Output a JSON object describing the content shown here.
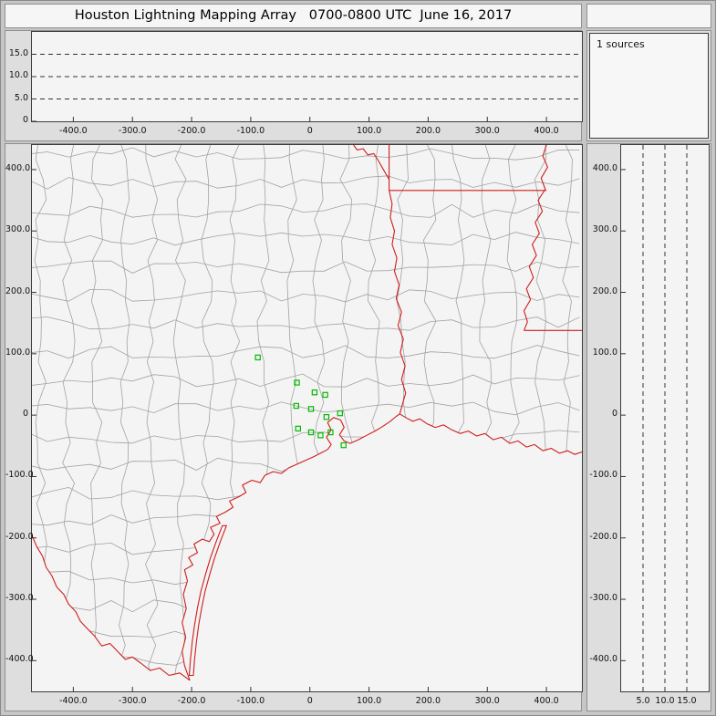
{
  "colors": {
    "window_bg": "#c6c6c6",
    "panel_bg": "#dedede",
    "plot_bg": "#f4f4f4",
    "panel_border": "#8f8f8f",
    "plot_border": "#3c3c3c",
    "text": "#111111",
    "county_line": "#a2a2a2",
    "state_line": "#cf1d1d",
    "station": "#00bb00",
    "dash_line": "#333333"
  },
  "chart_data": {
    "type": "scatter",
    "title": "Houston Lightning Mapping Array   0700-0800 UTC  June 16, 2017",
    "source_count_label": "1 sources",
    "grid": "dashed altitude reference lines at 5, 10 and 15 km",
    "legend_position": "none",
    "axes": {
      "ew": {
        "range": [
          -470,
          460
        ],
        "ticks": [
          [
            "-400.0",
            -400
          ],
          [
            "-300.0",
            -300
          ],
          [
            "-200.0",
            -200
          ],
          [
            "-100.0",
            -100
          ],
          [
            "0",
            0
          ],
          [
            "100.0",
            100
          ],
          [
            "200.0",
            200
          ],
          [
            "300.0",
            300
          ],
          [
            "400.0",
            400
          ]
        ]
      },
      "ns": {
        "range": [
          -450,
          440
        ],
        "ticks": [
          [
            "400.0",
            400
          ],
          [
            "300.0",
            300
          ],
          [
            "200.0",
            200
          ],
          [
            "100.0",
            100
          ],
          [
            "0",
            0
          ],
          [
            "-100.0",
            -100
          ],
          [
            "-200.0",
            -200
          ],
          [
            "-300.0",
            -300
          ],
          [
            "-400.0",
            -400
          ]
        ]
      },
      "alt_top": {
        "range": [
          0,
          20
        ],
        "dash_lines": [
          5,
          10,
          15
        ],
        "ticks": [
          [
            "15.0",
            15
          ],
          [
            "10.0",
            10
          ],
          [
            "5.0",
            5
          ],
          [
            "0",
            0
          ]
        ]
      },
      "alt_right": {
        "range": [
          0,
          20
        ],
        "dash_lines": [
          5,
          10,
          15
        ],
        "ticks": [
          [
            "5.0",
            5
          ],
          [
            "10.0",
            10
          ],
          [
            "15.0",
            15
          ]
        ]
      }
    },
    "stations_km": [
      [
        -88,
        94
      ],
      [
        -22,
        53
      ],
      [
        8,
        37
      ],
      [
        26,
        33
      ],
      [
        -23,
        15
      ],
      [
        2,
        10
      ],
      [
        28,
        -3
      ],
      [
        51,
        3
      ],
      [
        -20,
        -22
      ],
      [
        2,
        -28
      ],
      [
        18,
        -33
      ],
      [
        35,
        -28
      ],
      [
        57,
        -49
      ]
    ],
    "map": {
      "coastline": [
        [
          -203,
          -432
        ],
        [
          -212,
          -408
        ],
        [
          -216,
          -385
        ],
        [
          -210,
          -362
        ],
        [
          -216,
          -338
        ],
        [
          -209,
          -315
        ],
        [
          -214,
          -292
        ],
        [
          -207,
          -270
        ],
        [
          -212,
          -252
        ],
        [
          -198,
          -244
        ],
        [
          -205,
          -232
        ],
        [
          -190,
          -224
        ],
        [
          -196,
          -210
        ],
        [
          -182,
          -202
        ],
        [
          -170,
          -206
        ],
        [
          -162,
          -194
        ],
        [
          -168,
          -183
        ],
        [
          -152,
          -176
        ],
        [
          -158,
          -165
        ],
        [
          -143,
          -158
        ],
        [
          -130,
          -150
        ],
        [
          -136,
          -140
        ],
        [
          -120,
          -133
        ],
        [
          -108,
          -126
        ],
        [
          -114,
          -114
        ],
        [
          -98,
          -106
        ],
        [
          -84,
          -110
        ],
        [
          -76,
          -98
        ],
        [
          -62,
          -92
        ],
        [
          -48,
          -95
        ],
        [
          -36,
          -86
        ],
        [
          -22,
          -80
        ],
        [
          -8,
          -74
        ],
        [
          6,
          -68
        ],
        [
          18,
          -62
        ],
        [
          30,
          -56
        ],
        [
          36,
          -48
        ],
        [
          28,
          -36
        ],
        [
          36,
          -24
        ],
        [
          30,
          -12
        ],
        [
          40,
          -4
        ],
        [
          52,
          -8
        ],
        [
          58,
          -20
        ],
        [
          50,
          -32
        ],
        [
          58,
          -42
        ],
        [
          68,
          -46
        ],
        [
          82,
          -40
        ],
        [
          96,
          -33
        ],
        [
          110,
          -26
        ],
        [
          124,
          -18
        ],
        [
          136,
          -10
        ],
        [
          146,
          -2
        ],
        [
          152,
          2
        ],
        [
          162,
          -4
        ],
        [
          174,
          -10
        ],
        [
          186,
          -6
        ],
        [
          198,
          -14
        ],
        [
          212,
          -20
        ],
        [
          226,
          -16
        ],
        [
          240,
          -24
        ],
        [
          254,
          -30
        ],
        [
          268,
          -26
        ],
        [
          282,
          -34
        ],
        [
          296,
          -30
        ],
        [
          310,
          -40
        ],
        [
          324,
          -36
        ],
        [
          338,
          -46
        ],
        [
          352,
          -42
        ],
        [
          366,
          -52
        ],
        [
          380,
          -48
        ],
        [
          394,
          -58
        ],
        [
          408,
          -54
        ],
        [
          422,
          -62
        ],
        [
          436,
          -58
        ],
        [
          448,
          -64
        ],
        [
          460,
          -60
        ]
      ],
      "rio_grande": [
        [
          -203,
          -432
        ],
        [
          -220,
          -420
        ],
        [
          -238,
          -424
        ],
        [
          -254,
          -412
        ],
        [
          -270,
          -416
        ],
        [
          -286,
          -404
        ],
        [
          -300,
          -394
        ],
        [
          -312,
          -398
        ],
        [
          -326,
          -384
        ],
        [
          -338,
          -372
        ],
        [
          -352,
          -376
        ],
        [
          -364,
          -360
        ],
        [
          -376,
          -348
        ],
        [
          -388,
          -336
        ],
        [
          -396,
          -320
        ],
        [
          -408,
          -308
        ],
        [
          -416,
          -292
        ],
        [
          -428,
          -280
        ],
        [
          -436,
          -262
        ],
        [
          -446,
          -248
        ],
        [
          -452,
          -230
        ],
        [
          -462,
          -214
        ],
        [
          -470,
          -196
        ]
      ],
      "padre_island": [
        [
          -148,
          -180
        ],
        [
          -158,
          -205
        ],
        [
          -168,
          -232
        ],
        [
          -176,
          -258
        ],
        [
          -184,
          -286
        ],
        [
          -190,
          -314
        ],
        [
          -195,
          -342
        ],
        [
          -199,
          -370
        ],
        [
          -202,
          -398
        ],
        [
          -204,
          -424
        ],
        [
          -197,
          -424
        ],
        [
          -195,
          -398
        ],
        [
          -192,
          -370
        ],
        [
          -188,
          -342
        ],
        [
          -183,
          -314
        ],
        [
          -177,
          -286
        ],
        [
          -169,
          -258
        ],
        [
          -161,
          -232
        ],
        [
          -151,
          -205
        ],
        [
          -141,
          -180
        ]
      ],
      "state_borders": [
        [
          [
            74,
            440
          ],
          [
            80,
            432
          ],
          [
            90,
            434
          ],
          [
            98,
            424
          ],
          [
            108,
            426
          ],
          [
            116,
            414
          ],
          [
            122,
            404
          ],
          [
            128,
            394
          ],
          [
            134,
            384
          ]
        ],
        [
          [
            134,
            440
          ],
          [
            134,
            366
          ]
        ],
        [
          [
            134,
            366
          ],
          [
            400,
            366
          ]
        ],
        [
          [
            134,
            366
          ],
          [
            139,
            344
          ],
          [
            136,
            322
          ],
          [
            143,
            300
          ],
          [
            139,
            278
          ],
          [
            147,
            256
          ],
          [
            143,
            234
          ],
          [
            151,
            212
          ],
          [
            146,
            190
          ],
          [
            155,
            168
          ],
          [
            149,
            146
          ],
          [
            158,
            124
          ],
          [
            153,
            102
          ],
          [
            161,
            80
          ],
          [
            155,
            58
          ],
          [
            162,
            36
          ],
          [
            156,
            16
          ],
          [
            152,
            2
          ]
        ],
        [
          [
            400,
            440
          ],
          [
            394,
            422
          ],
          [
            402,
            404
          ],
          [
            391,
            386
          ],
          [
            398,
            368
          ],
          [
            386,
            350
          ],
          [
            393,
            332
          ],
          [
            381,
            314
          ],
          [
            388,
            296
          ],
          [
            376,
            278
          ],
          [
            383,
            260
          ],
          [
            371,
            242
          ],
          [
            378,
            224
          ],
          [
            366,
            206
          ],
          [
            373,
            188
          ],
          [
            362,
            170
          ],
          [
            368,
            152
          ],
          [
            362,
            138
          ]
        ],
        [
          [
            362,
            138
          ],
          [
            460,
            138
          ]
        ]
      ]
    }
  }
}
